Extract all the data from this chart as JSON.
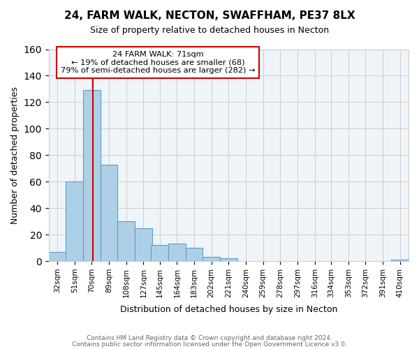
{
  "title_line1": "24, FARM WALK, NECTON, SWAFFHAM, PE37 8LX",
  "title_line2": "Size of property relative to detached houses in Necton",
  "xlabel": "Distribution of detached houses by size in Necton",
  "ylabel": "Number of detached properties",
  "footer_line1": "Contains HM Land Registry data © Crown copyright and database right 2024.",
  "footer_line2": "Contains public sector information licensed under the Open Government Licence v3.0.",
  "bin_labels": [
    "32sqm",
    "51sqm",
    "70sqm",
    "89sqm",
    "108sqm",
    "127sqm",
    "145sqm",
    "164sqm",
    "183sqm",
    "202sqm",
    "221sqm",
    "240sqm",
    "259sqm",
    "278sqm",
    "297sqm",
    "316sqm",
    "334sqm",
    "353sqm",
    "372sqm",
    "391sqm",
    "410sqm"
  ],
  "bar_heights": [
    7,
    60,
    129,
    73,
    30,
    25,
    12,
    13,
    10,
    3,
    2,
    0,
    0,
    0,
    0,
    0,
    0,
    0,
    0,
    0,
    1
  ],
  "bar_color": "#aed0e6",
  "bar_edge_color": "#5b9dc9",
  "property_line_x": 71,
  "property_line_color": "#cc0000",
  "annotation_title": "24 FARM WALK: 71sqm",
  "annotation_line1": "← 19% of detached houses are smaller (68)",
  "annotation_line2": "79% of semi-detached houses are larger (282) →",
  "annotation_box_color": "#ffffff",
  "annotation_box_edge_color": "#cc0000",
  "ylim": [
    0,
    160
  ],
  "yticks": [
    0,
    20,
    40,
    60,
    80,
    100,
    120,
    140,
    160
  ],
  "background_color": "#ffffff",
  "grid_color": "#cccccc",
  "bin_edges": [
    32,
    51,
    70,
    89,
    108,
    127,
    145,
    164,
    183,
    202,
    221,
    240,
    259,
    278,
    297,
    316,
    334,
    353,
    372,
    391,
    410
  ]
}
